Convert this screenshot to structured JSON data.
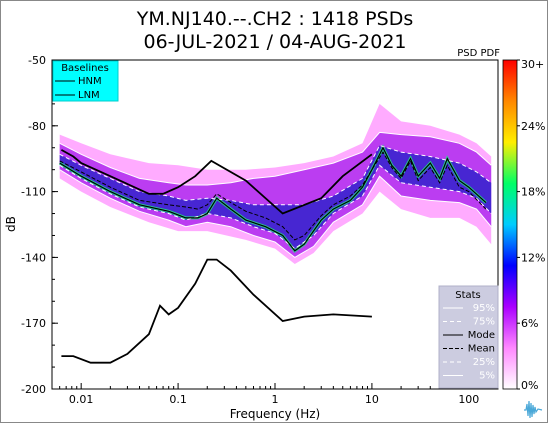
{
  "chart_data": {
    "type": "heatmap",
    "title_line1": "YM.NJ140.--.CH2 : 1418 PSDs",
    "title_line2": "06-JUL-2021 / 04-AUG-2021",
    "xlabel": "Frequency (Hz)",
    "ylabel": "dB",
    "x_scale": "log",
    "xlim": [
      0.005,
      200
    ],
    "ylim": [
      -200,
      -50
    ],
    "x_ticks": [
      {
        "value": 0.01,
        "label": "0.01"
      },
      {
        "value": 0.1,
        "label": "0.1"
      },
      {
        "value": 1,
        "label": "1"
      },
      {
        "value": 10,
        "label": "10"
      },
      {
        "value": 100,
        "label": "100"
      }
    ],
    "y_ticks": [
      {
        "value": -50,
        "label": "-50"
      },
      {
        "value": -80,
        "label": "-80"
      },
      {
        "value": -110,
        "label": "-110"
      },
      {
        "value": -140,
        "label": "-140"
      },
      {
        "value": -170,
        "label": "-170"
      },
      {
        "value": -200,
        "label": "-200"
      }
    ],
    "colorbar": {
      "title": "PSD PDF",
      "ticks": [
        "30+",
        "24%",
        "18%",
        "12%",
        "6%",
        "0%"
      ],
      "colors": [
        "#ff0000",
        "#ff8800",
        "#ffee00",
        "#00ff66",
        "#00ccff",
        "#0000ff",
        "#aa00ff",
        "#ff88ff",
        "#ffffff"
      ]
    },
    "baselines_legend": {
      "title": "Baselines",
      "items": [
        "HNM",
        "LNM"
      ],
      "background": "#00ffff"
    },
    "stats_legend": {
      "title": "Stats",
      "items": [
        "95%",
        "75%",
        "Mode",
        "Mean",
        "25%",
        "5%"
      ],
      "background": "#cccce0"
    },
    "hnm": [
      [
        0.00625,
        -91
      ],
      [
        0.0083,
        -94
      ],
      [
        0.01,
        -97
      ],
      [
        0.02,
        -103
      ],
      [
        0.05,
        -111
      ],
      [
        0.07,
        -111
      ],
      [
        0.1,
        -108
      ],
      [
        0.15,
        -103
      ],
      [
        0.22,
        -96
      ],
      [
        0.5,
        -105
      ],
      [
        1.2,
        -120
      ],
      [
        3,
        -113
      ],
      [
        5,
        -103
      ],
      [
        10,
        -93
      ]
    ],
    "lnm": [
      [
        0.00625,
        -185
      ],
      [
        0.0083,
        -185
      ],
      [
        0.0125,
        -188
      ],
      [
        0.02,
        -188
      ],
      [
        0.03,
        -184
      ],
      [
        0.05,
        -175
      ],
      [
        0.065,
        -162
      ],
      [
        0.08,
        -166
      ],
      [
        0.1,
        -163
      ],
      [
        0.15,
        -152
      ],
      [
        0.2,
        -141
      ],
      [
        0.25,
        -141
      ],
      [
        0.35,
        -146
      ],
      [
        0.6,
        -157
      ],
      [
        1.2,
        -169
      ],
      [
        2,
        -167
      ],
      [
        4,
        -166
      ],
      [
        10,
        -167
      ]
    ],
    "mode": [
      [
        0.006,
        -97
      ],
      [
        0.01,
        -103
      ],
      [
        0.02,
        -110
      ],
      [
        0.04,
        -116
      ],
      [
        0.08,
        -119
      ],
      [
        0.12,
        -122
      ],
      [
        0.16,
        -122
      ],
      [
        0.2,
        -120
      ],
      [
        0.25,
        -113
      ],
      [
        0.35,
        -118
      ],
      [
        0.5,
        -123
      ],
      [
        0.8,
        -126
      ],
      [
        1.2,
        -130
      ],
      [
        1.6,
        -137
      ],
      [
        2,
        -134
      ],
      [
        3,
        -123
      ],
      [
        4,
        -118
      ],
      [
        6,
        -114
      ],
      [
        8,
        -108
      ],
      [
        10,
        -100
      ],
      [
        13,
        -90
      ],
      [
        16,
        -98
      ],
      [
        20,
        -103
      ],
      [
        25,
        -95
      ],
      [
        30,
        -103
      ],
      [
        40,
        -97
      ],
      [
        50,
        -104
      ],
      [
        60,
        -95
      ],
      [
        80,
        -105
      ],
      [
        100,
        -108
      ],
      [
        150,
        -115
      ]
    ],
    "mean": [
      [
        0.006,
        -96
      ],
      [
        0.01,
        -101
      ],
      [
        0.02,
        -108
      ],
      [
        0.04,
        -114
      ],
      [
        0.08,
        -116
      ],
      [
        0.12,
        -117
      ],
      [
        0.16,
        -118
      ],
      [
        0.2,
        -116
      ],
      [
        0.25,
        -111
      ],
      [
        0.35,
        -115
      ],
      [
        0.5,
        -119
      ],
      [
        0.8,
        -122
      ],
      [
        1.2,
        -126
      ],
      [
        1.6,
        -132
      ],
      [
        2,
        -130
      ],
      [
        3,
        -121
      ],
      [
        4,
        -116
      ],
      [
        6,
        -112
      ],
      [
        8,
        -107
      ],
      [
        10,
        -100
      ],
      [
        13,
        -92
      ],
      [
        16,
        -99
      ],
      [
        20,
        -104
      ],
      [
        25,
        -96
      ],
      [
        30,
        -105
      ],
      [
        40,
        -99
      ],
      [
        50,
        -106
      ],
      [
        60,
        -98
      ],
      [
        80,
        -108
      ],
      [
        100,
        -110
      ],
      [
        150,
        -118
      ]
    ],
    "p95": [
      [
        0.006,
        -88
      ],
      [
        0.01,
        -93
      ],
      [
        0.02,
        -99
      ],
      [
        0.04,
        -104
      ],
      [
        0.08,
        -106
      ],
      [
        0.12,
        -107
      ],
      [
        0.2,
        -107
      ],
      [
        0.35,
        -106
      ],
      [
        0.6,
        -104
      ],
      [
        1,
        -103
      ],
      [
        2,
        -100
      ],
      [
        4,
        -97
      ],
      [
        8,
        -92
      ],
      [
        12,
        -83
      ],
      [
        20,
        -84
      ],
      [
        40,
        -85
      ],
      [
        80,
        -88
      ],
      [
        120,
        -92
      ],
      [
        170,
        -98
      ]
    ],
    "p75": [
      [
        0.006,
        -93
      ],
      [
        0.01,
        -98
      ],
      [
        0.02,
        -104
      ],
      [
        0.04,
        -110
      ],
      [
        0.08,
        -112
      ],
      [
        0.12,
        -114
      ],
      [
        0.2,
        -113
      ],
      [
        0.35,
        -114
      ],
      [
        0.6,
        -116
      ],
      [
        1,
        -116
      ],
      [
        2,
        -116
      ],
      [
        4,
        -112
      ],
      [
        8,
        -104
      ],
      [
        12,
        -89
      ],
      [
        20,
        -92
      ],
      [
        40,
        -94
      ],
      [
        80,
        -97
      ],
      [
        120,
        -101
      ],
      [
        170,
        -106
      ]
    ],
    "p25": [
      [
        0.006,
        -98
      ],
      [
        0.01,
        -104
      ],
      [
        0.02,
        -111
      ],
      [
        0.04,
        -117
      ],
      [
        0.08,
        -120
      ],
      [
        0.12,
        -123
      ],
      [
        0.2,
        -120
      ],
      [
        0.35,
        -122
      ],
      [
        0.6,
        -126
      ],
      [
        1,
        -129
      ],
      [
        1.6,
        -136
      ],
      [
        2.5,
        -130
      ],
      [
        4,
        -120
      ],
      [
        8,
        -112
      ],
      [
        12,
        -98
      ],
      [
        20,
        -106
      ],
      [
        40,
        -108
      ],
      [
        80,
        -110
      ],
      [
        120,
        -113
      ],
      [
        170,
        -120
      ]
    ],
    "p5": [
      [
        0.006,
        -100
      ],
      [
        0.01,
        -106
      ],
      [
        0.02,
        -113
      ],
      [
        0.04,
        -119
      ],
      [
        0.08,
        -123
      ],
      [
        0.12,
        -126
      ],
      [
        0.2,
        -124
      ],
      [
        0.35,
        -126
      ],
      [
        0.6,
        -130
      ],
      [
        1,
        -133
      ],
      [
        1.6,
        -140
      ],
      [
        2.5,
        -135
      ],
      [
        4,
        -124
      ],
      [
        8,
        -116
      ],
      [
        12,
        -103
      ],
      [
        20,
        -112
      ],
      [
        40,
        -114
      ],
      [
        80,
        -115
      ],
      [
        120,
        -118
      ],
      [
        170,
        -126
      ]
    ],
    "pdf_band": {
      "upper": [
        [
          0.006,
          -84
        ],
        [
          0.01,
          -88
        ],
        [
          0.02,
          -93
        ],
        [
          0.05,
          -97
        ],
        [
          0.1,
          -98
        ],
        [
          0.2,
          -100
        ],
        [
          0.5,
          -100
        ],
        [
          1,
          -99
        ],
        [
          2,
          -97
        ],
        [
          4,
          -94
        ],
        [
          8,
          -88
        ],
        [
          12,
          -70
        ],
        [
          20,
          -78
        ],
        [
          40,
          -80
        ],
        [
          80,
          -84
        ],
        [
          120,
          -88
        ],
        [
          170,
          -94
        ]
      ],
      "lower": [
        [
          0.006,
          -104
        ],
        [
          0.01,
          -110
        ],
        [
          0.02,
          -117
        ],
        [
          0.05,
          -124
        ],
        [
          0.1,
          -128
        ],
        [
          0.2,
          -128
        ],
        [
          0.5,
          -132
        ],
        [
          1,
          -136
        ],
        [
          1.6,
          -143
        ],
        [
          2.5,
          -138
        ],
        [
          4,
          -128
        ],
        [
          8,
          -120
        ],
        [
          12,
          -110
        ],
        [
          20,
          -118
        ],
        [
          40,
          -122
        ],
        [
          80,
          -122
        ],
        [
          120,
          -126
        ],
        [
          170,
          -134
        ]
      ]
    }
  }
}
